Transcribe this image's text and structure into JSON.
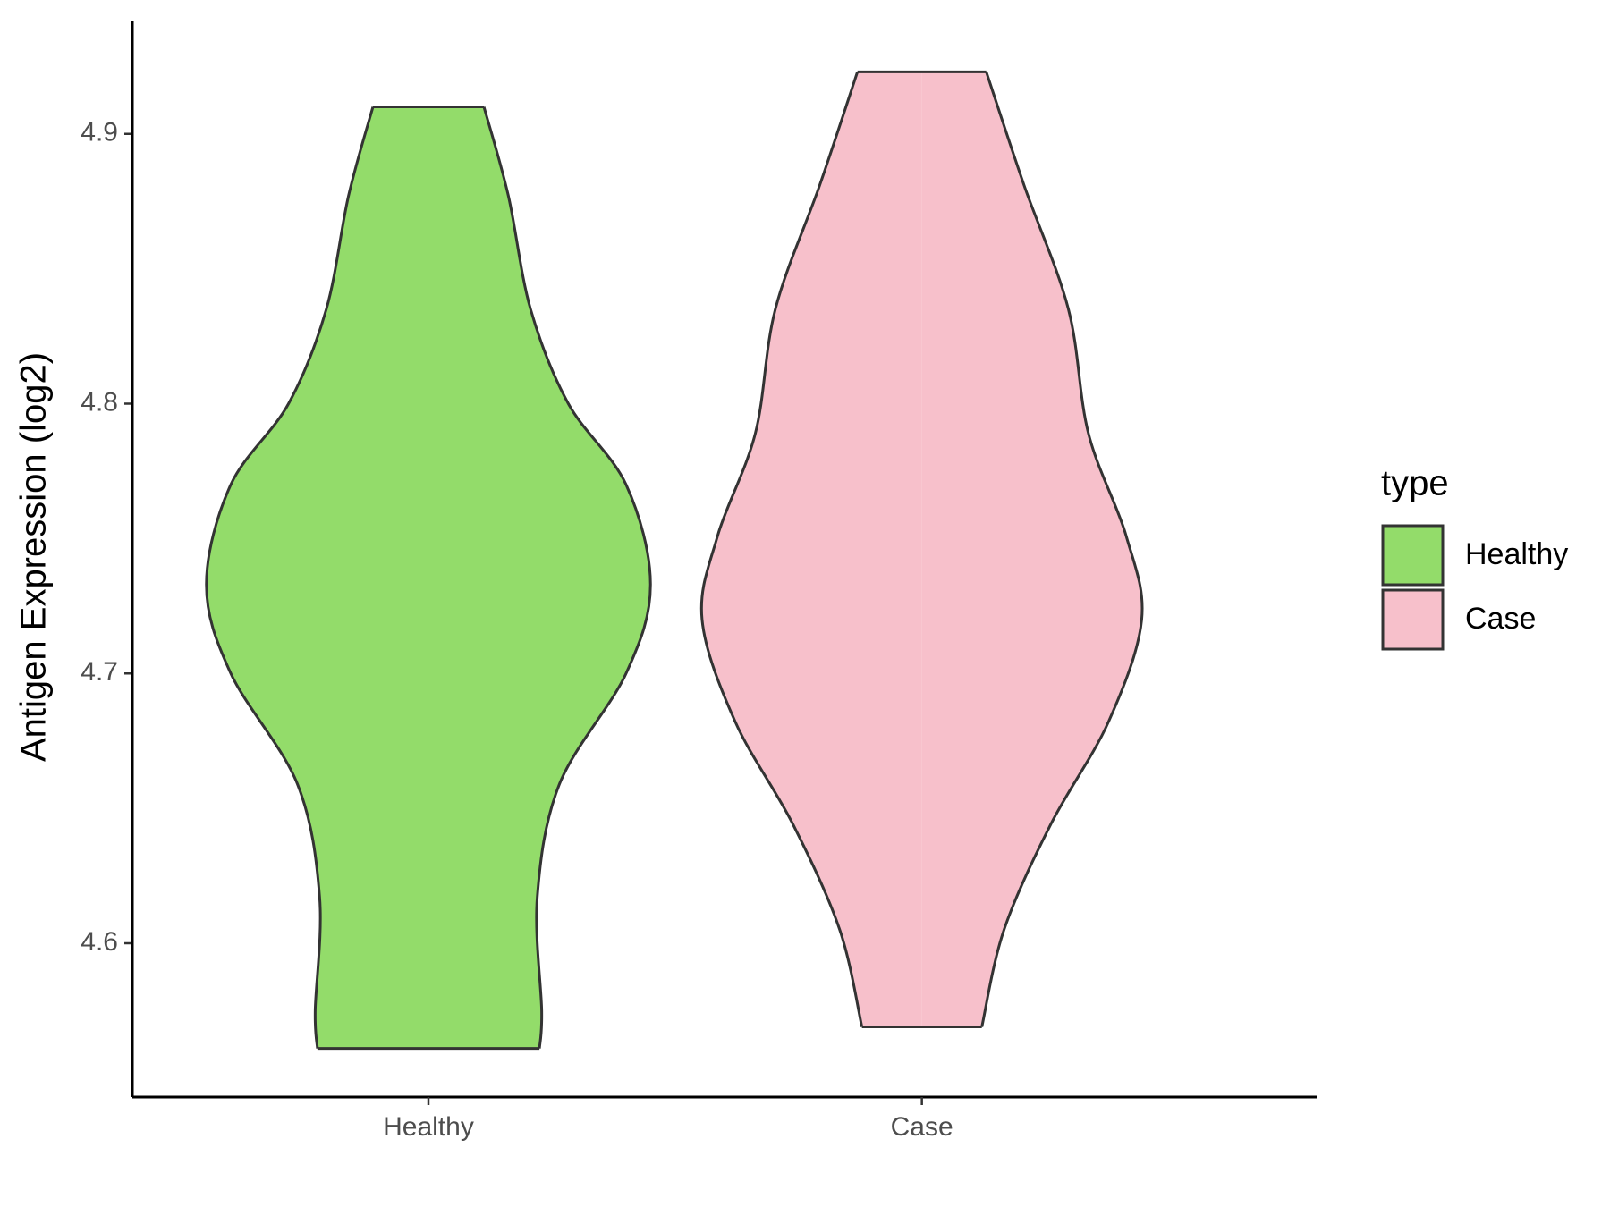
{
  "chart_data": {
    "type": "violin",
    "y_label": "Antigen Expression (log2)",
    "categories": [
      "Healthy",
      "Case"
    ],
    "series": [
      {
        "name": "Healthy",
        "color": "#93dc6a",
        "y": [
          4.91,
          4.877,
          4.835,
          4.8,
          4.77,
          4.733,
          4.7,
          4.659,
          4.617,
          4.575,
          4.561
        ],
        "width": [
          0.25,
          0.36,
          0.46,
          0.63,
          0.89,
          1.0,
          0.89,
          0.59,
          0.49,
          0.51,
          0.5
        ]
      },
      {
        "name": "Case",
        "color": "#f7c0cb",
        "y": [
          4.923,
          4.881,
          4.835,
          4.789,
          4.751,
          4.72,
          4.682,
          4.644,
          4.605,
          4.569
        ],
        "width": [
          0.29,
          0.46,
          0.66,
          0.75,
          0.92,
          0.99,
          0.84,
          0.58,
          0.37,
          0.27
        ]
      }
    ],
    "ylim": [
      4.543,
      4.942
    ],
    "yticks": [
      4.6,
      4.7,
      4.8,
      4.9
    ],
    "legend_title": "type",
    "legend_position": "right"
  }
}
